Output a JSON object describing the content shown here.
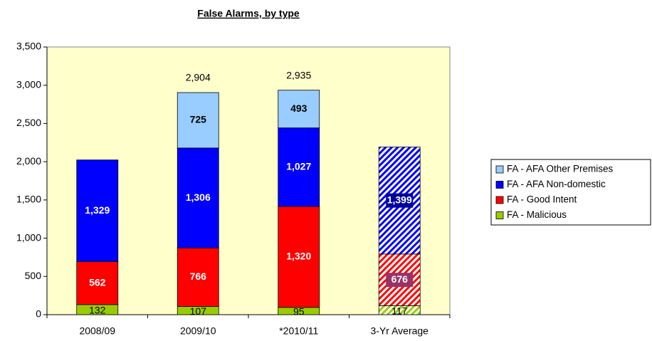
{
  "chart_data": {
    "type": "stacked_bar",
    "title": "False Alarms, by type",
    "categories": [
      "2008/09",
      "2009/10",
      "*2010/11",
      "3-Yr Average"
    ],
    "hatched": [
      false,
      false,
      false,
      true
    ],
    "series": [
      {
        "name": "FA - Malicious",
        "color": "#99cc00",
        "values": [
          132,
          107,
          95,
          117
        ]
      },
      {
        "name": "FA - Good Intent",
        "color": "#ff0000",
        "values": [
          562,
          766,
          1320,
          676
        ],
        "value_labels": [
          "562",
          "766",
          "1,320",
          "676"
        ]
      },
      {
        "name": "FA - AFA Non-domestic",
        "color": "#0000ff",
        "values": [
          1329,
          1306,
          1027,
          1399
        ],
        "value_labels": [
          "1,329",
          "1,306",
          "1,027",
          "1,399"
        ]
      },
      {
        "name": "FA - AFA Other Premises",
        "color": "#99ccff",
        "values": [
          null,
          725,
          493,
          null
        ]
      }
    ],
    "totals": [
      null,
      2904,
      2935,
      null
    ],
    "total_labels": [
      null,
      "2,904",
      "2,935",
      null
    ],
    "ylim": [
      0,
      3500
    ],
    "yticks": [
      0,
      500,
      {
        "value": 1000,
        "label": "1,000"
      },
      {
        "value": 1500,
        "label": "1,500"
      },
      {
        "value": 2000,
        "label": "2,000"
      },
      {
        "value": 2500,
        "label": "2,500"
      },
      {
        "value": 3000,
        "label": "3,000"
      },
      {
        "value": 3500,
        "label": "3,500"
      }
    ],
    "grid": false,
    "legend": "right"
  }
}
